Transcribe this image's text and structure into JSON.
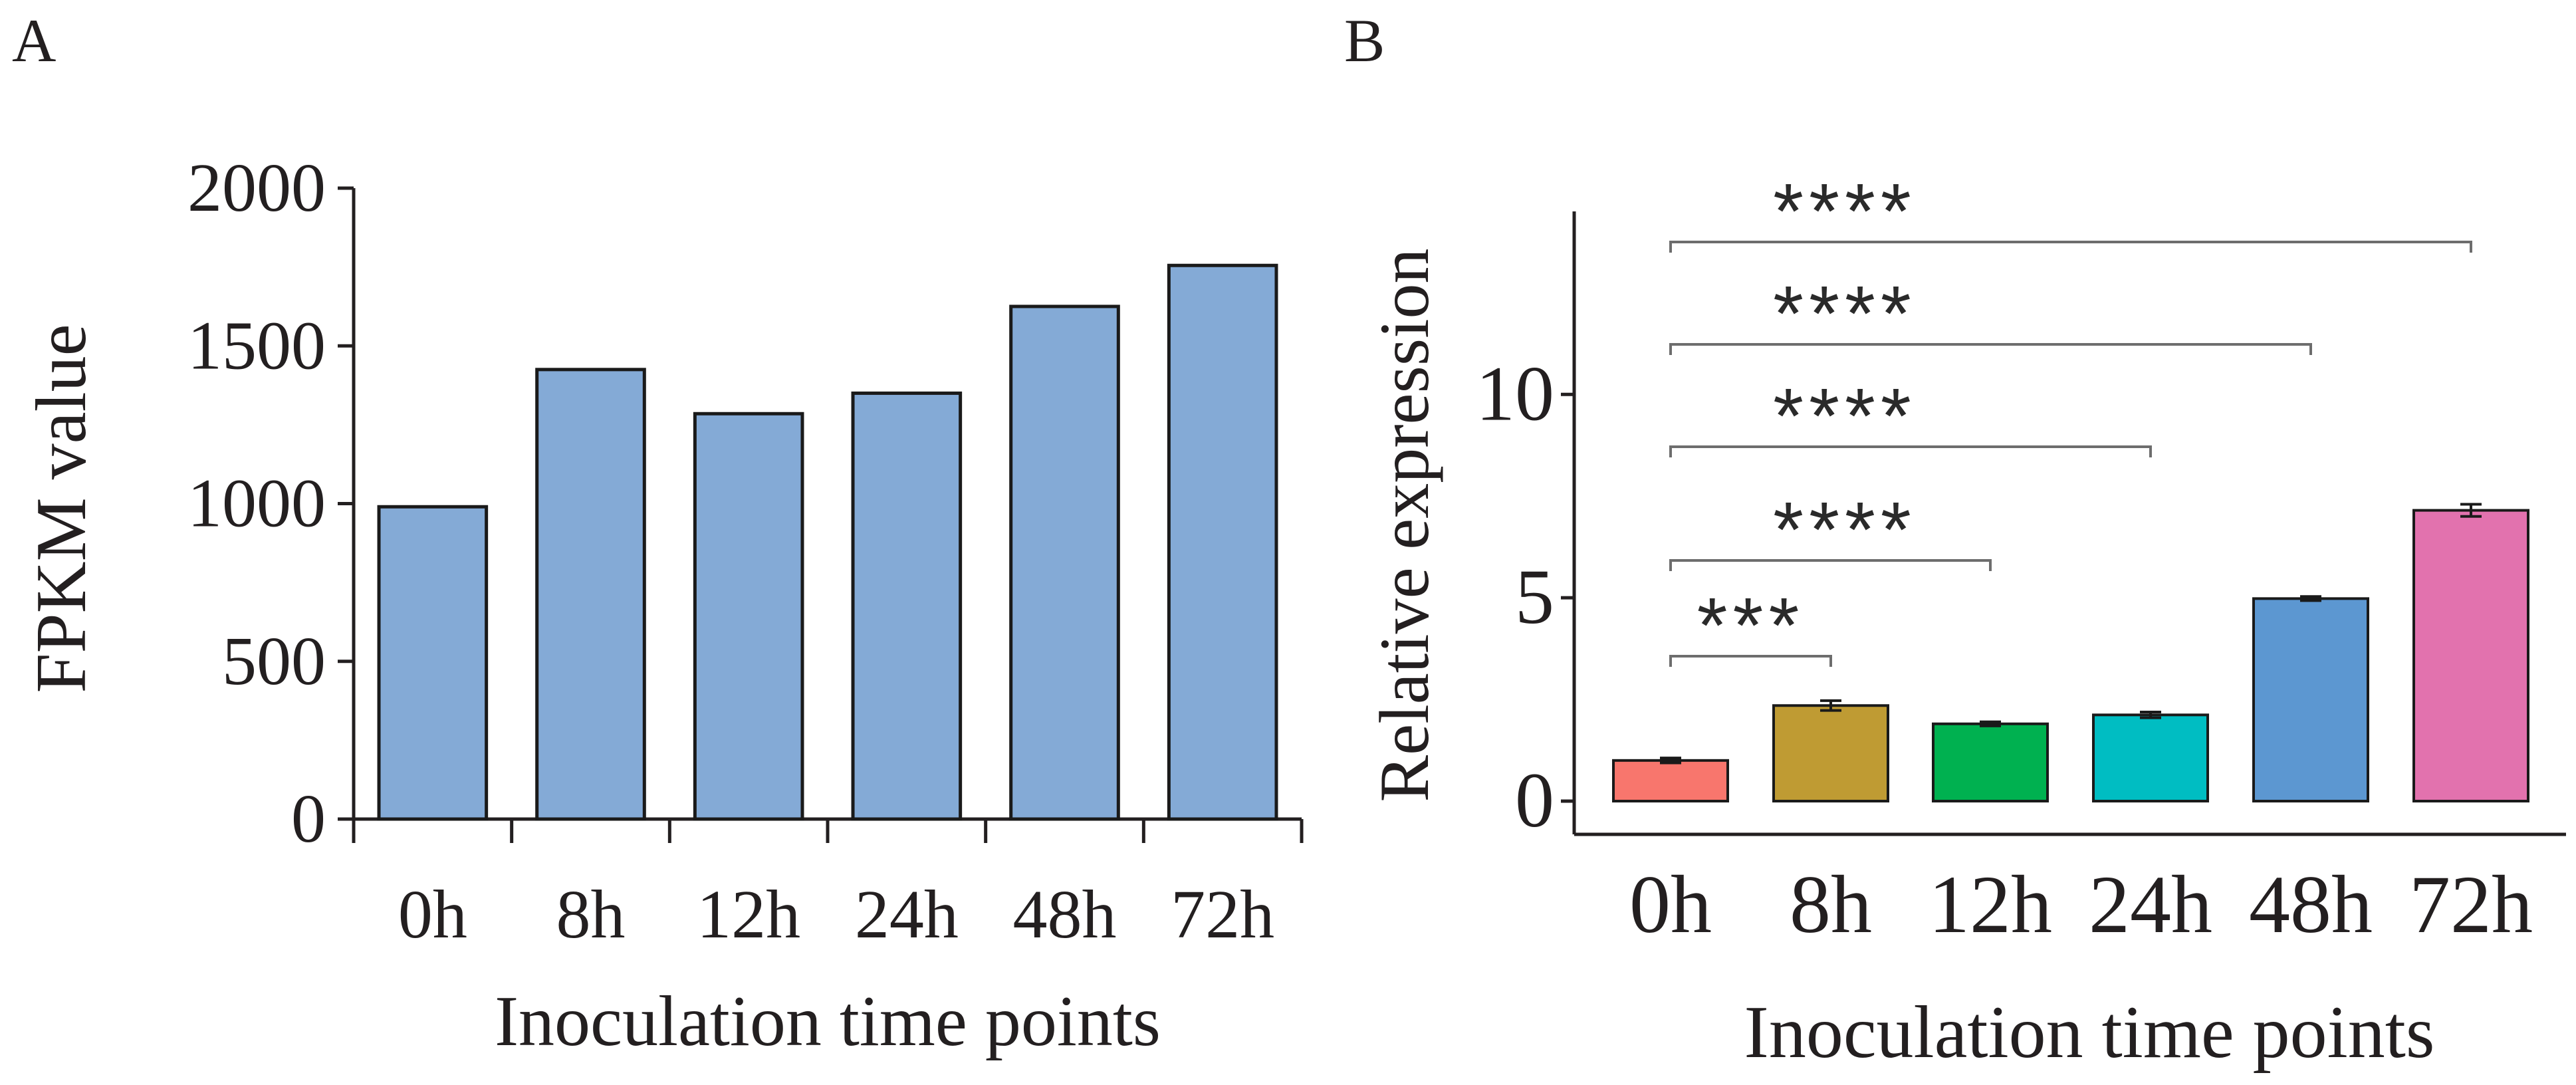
{
  "chart_data": [
    {
      "panel": "A",
      "type": "bar",
      "categories": [
        "0h",
        "8h",
        "12h",
        "24h",
        "48h",
        "72h"
      ],
      "values": [
        990,
        1425,
        1285,
        1350,
        1625,
        1755
      ],
      "xlabel": "Inoculation time points",
      "ylabel": "FPKM value",
      "ylim": [
        0,
        2000
      ],
      "yticks": [
        "0",
        "500",
        "1000",
        "1500",
        "2000"
      ],
      "grid": false,
      "bar_color": "#84aad6"
    },
    {
      "panel": "B",
      "type": "bar",
      "categories": [
        "0h",
        "8h",
        "12h",
        "24h",
        "48h",
        "72h"
      ],
      "values": [
        1.0,
        2.35,
        1.9,
        2.12,
        4.98,
        7.15
      ],
      "errors": [
        0.06,
        0.12,
        0.05,
        0.07,
        0.05,
        0.15
      ],
      "xlabel": "Inoculation time points",
      "ylabel": "Relative expression",
      "ylim": [
        0,
        14.5
      ],
      "yticks": [
        "0",
        "5",
        "10"
      ],
      "grid": false,
      "bar_colors": [
        "#f8766d",
        "#bf9b33",
        "#00b150",
        "#00bdc2",
        "#5c97d1",
        "#e272ae"
      ],
      "significance": [
        {
          "from": "0h",
          "to": "8h",
          "label": "***"
        },
        {
          "from": "0h",
          "to": "12h",
          "label": "****"
        },
        {
          "from": "0h",
          "to": "24h",
          "label": "****"
        },
        {
          "from": "0h",
          "to": "48h",
          "label": "****"
        },
        {
          "from": "0h",
          "to": "72h",
          "label": "****"
        }
      ]
    }
  ],
  "colors": {
    "axis": "#231f20",
    "bracket": "#6d6d6d",
    "bar_edge": "#1a1a1a"
  }
}
